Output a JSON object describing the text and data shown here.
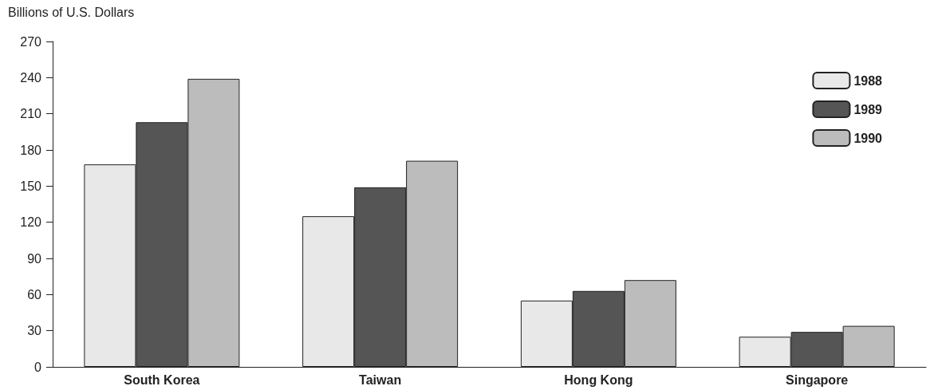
{
  "chart_data": {
    "type": "bar",
    "ylabel": "Billions of U.S. Dollars",
    "categories": [
      "South Korea",
      "Taiwan",
      "Hong Kong",
      "Singapore"
    ],
    "series": [
      {
        "name": "1988",
        "color": "#e8e8e8",
        "values": [
          168,
          125,
          55,
          25
        ]
      },
      {
        "name": "1989",
        "color": "#555555",
        "values": [
          203,
          149,
          63,
          29
        ]
      },
      {
        "name": "1990",
        "color": "#bcbcbc",
        "values": [
          239,
          171,
          72,
          34
        ]
      }
    ],
    "ylim": [
      0,
      270
    ],
    "yticks": [
      0,
      30,
      60,
      90,
      120,
      150,
      180,
      210,
      240,
      270
    ],
    "grid": false,
    "legend": "top right"
  }
}
